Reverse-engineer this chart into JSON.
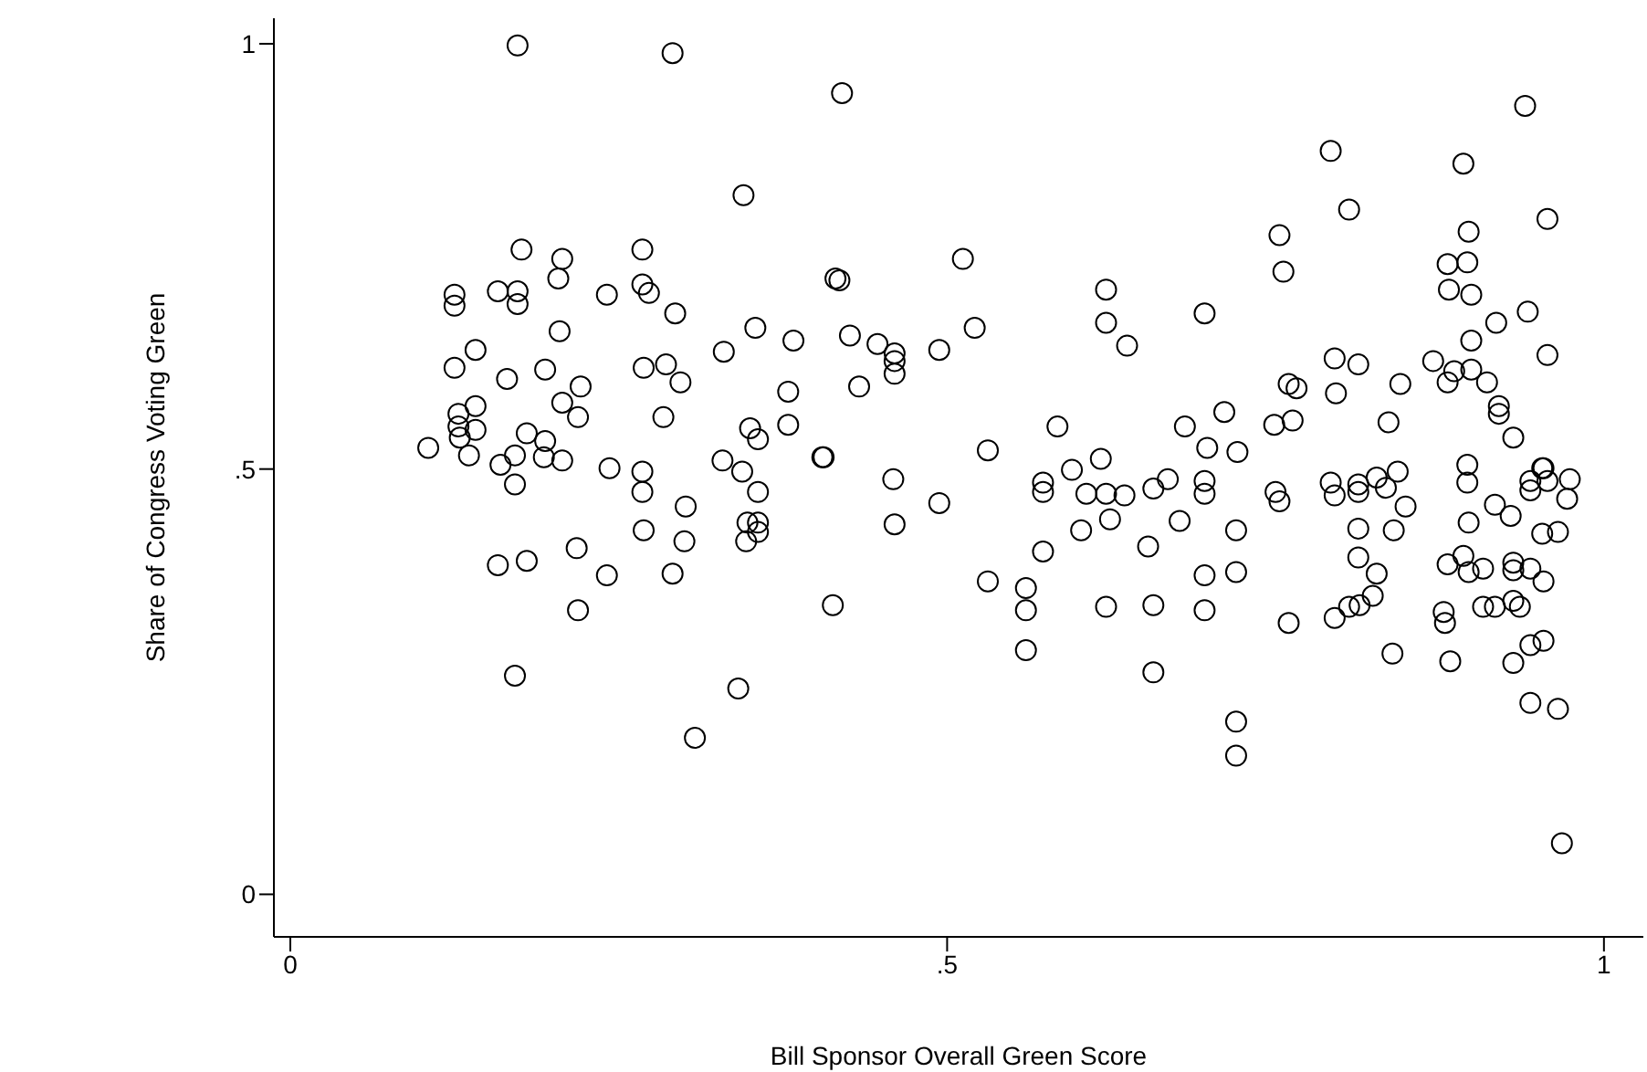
{
  "chart_data": {
    "type": "scatter",
    "xlabel": "Bill Sponsor Overall Green Score",
    "ylabel": "Share of Congress Voting Green",
    "xlim": [
      -0.0125,
      1.03
    ],
    "ylim": [
      -0.05,
      1.03
    ],
    "xticks": [
      0,
      {
        "value": 0.5,
        "label": ".5"
      },
      1
    ],
    "yticks": [
      0,
      {
        "value": 0.5,
        "label": ".5"
      },
      1
    ],
    "grid": false,
    "legend": false,
    "marker": "circle",
    "series": [
      {
        "color": "#000000",
        "x": [
          0.173,
          0.291,
          0.42,
          0.345,
          0.176,
          0.207,
          0.268,
          0.125,
          0.125,
          0.158,
          0.173,
          0.173,
          0.204,
          0.241,
          0.268,
          0.273,
          0.293,
          0.205,
          0.141,
          0.354,
          0.383,
          0.33,
          0.415,
          0.125,
          0.165,
          0.194,
          0.221,
          0.269,
          0.286,
          0.297,
          0.379,
          0.141,
          0.128,
          0.207,
          0.219,
          0.284,
          0.379,
          0.35,
          0.356,
          0.128,
          0.141,
          0.129,
          0.105,
          0.136,
          0.18,
          0.194,
          0.171,
          0.193,
          0.207,
          0.16,
          0.243,
          0.268,
          0.329,
          0.344,
          0.405,
          0.171,
          0.268,
          0.301,
          0.356,
          0.269,
          0.3,
          0.348,
          0.356,
          0.347,
          0.356,
          0.218,
          0.158,
          0.18,
          0.241,
          0.291,
          0.219,
          0.413,
          0.171,
          0.341,
          0.308,
          0.512,
          0.418,
          0.621,
          0.696,
          0.426,
          0.447,
          0.46,
          0.46,
          0.46,
          0.521,
          0.621,
          0.637,
          0.494,
          0.433,
          0.711,
          0.681,
          0.584,
          0.698,
          0.531,
          0.406,
          0.617,
          0.595,
          0.459,
          0.494,
          0.46,
          0.573,
          0.573,
          0.606,
          0.621,
          0.635,
          0.657,
          0.668,
          0.696,
          0.696,
          0.624,
          0.677,
          0.602,
          0.653,
          0.573,
          0.531,
          0.56,
          0.56,
          0.621,
          0.657,
          0.696,
          0.696,
          0.72,
          0.72,
          0.56,
          0.657,
          0.72,
          0.72,
          0.94,
          0.792,
          0.893,
          0.806,
          0.957,
          0.753,
          0.897,
          0.756,
          0.881,
          0.896,
          0.882,
          0.899,
          0.918,
          0.942,
          0.899,
          0.957,
          0.795,
          0.813,
          0.87,
          0.886,
          0.899,
          0.881,
          0.911,
          0.76,
          0.766,
          0.796,
          0.845,
          0.749,
          0.763,
          0.836,
          0.92,
          0.92,
          0.931,
          0.721,
          0.896,
          0.954,
          0.75,
          0.753,
          0.792,
          0.795,
          0.813,
          0.813,
          0.827,
          0.834,
          0.843,
          0.849,
          0.896,
          0.917,
          0.929,
          0.953,
          0.944,
          0.957,
          0.974,
          0.972,
          0.944,
          0.813,
          0.84,
          0.897,
          0.953,
          0.965,
          0.813,
          0.827,
          0.893,
          0.881,
          0.897,
          0.908,
          0.931,
          0.931,
          0.944,
          0.954,
          0.824,
          0.814,
          0.806,
          0.795,
          0.76,
          0.878,
          0.879,
          0.908,
          0.917,
          0.931,
          0.936,
          0.839,
          0.883,
          0.931,
          0.944,
          0.954,
          0.944,
          0.965,
          0.968
        ],
        "values": [
          0.998,
          0.989,
          0.942,
          0.822,
          0.758,
          0.747,
          0.758,
          0.705,
          0.692,
          0.709,
          0.709,
          0.694,
          0.724,
          0.705,
          0.717,
          0.707,
          0.683,
          0.662,
          0.64,
          0.666,
          0.651,
          0.638,
          0.724,
          0.619,
          0.606,
          0.617,
          0.597,
          0.619,
          0.623,
          0.602,
          0.591,
          0.574,
          0.565,
          0.578,
          0.561,
          0.561,
          0.552,
          0.548,
          0.535,
          0.55,
          0.546,
          0.537,
          0.525,
          0.516,
          0.542,
          0.533,
          0.516,
          0.514,
          0.51,
          0.505,
          0.501,
          0.497,
          0.51,
          0.497,
          0.514,
          0.482,
          0.473,
          0.456,
          0.473,
          0.428,
          0.415,
          0.437,
          0.437,
          0.415,
          0.426,
          0.407,
          0.387,
          0.392,
          0.375,
          0.377,
          0.334,
          0.34,
          0.257,
          0.242,
          0.184,
          0.747,
          0.722,
          0.711,
          0.683,
          0.657,
          0.647,
          0.636,
          0.627,
          0.612,
          0.666,
          0.672,
          0.645,
          0.64,
          0.597,
          0.567,
          0.55,
          0.55,
          0.525,
          0.522,
          0.514,
          0.512,
          0.499,
          0.488,
          0.46,
          0.435,
          0.484,
          0.473,
          0.471,
          0.471,
          0.469,
          0.477,
          0.488,
          0.486,
          0.471,
          0.441,
          0.439,
          0.428,
          0.409,
          0.403,
          0.368,
          0.36,
          0.334,
          0.338,
          0.34,
          0.334,
          0.375,
          0.428,
          0.379,
          0.287,
          0.261,
          0.203,
          0.163,
          0.927,
          0.874,
          0.859,
          0.805,
          0.794,
          0.775,
          0.779,
          0.732,
          0.741,
          0.743,
          0.711,
          0.705,
          0.672,
          0.685,
          0.651,
          0.634,
          0.63,
          0.623,
          0.627,
          0.615,
          0.617,
          0.602,
          0.602,
          0.6,
          0.595,
          0.589,
          0.6,
          0.552,
          0.557,
          0.555,
          0.574,
          0.565,
          0.537,
          0.52,
          0.505,
          0.501,
          0.473,
          0.462,
          0.484,
          0.469,
          0.482,
          0.473,
          0.49,
          0.478,
          0.497,
          0.456,
          0.484,
          0.458,
          0.445,
          0.501,
          0.486,
          0.486,
          0.488,
          0.465,
          0.475,
          0.43,
          0.428,
          0.437,
          0.424,
          0.426,
          0.396,
          0.377,
          0.398,
          0.388,
          0.379,
          0.383,
          0.39,
          0.381,
          0.383,
          0.368,
          0.351,
          0.34,
          0.338,
          0.325,
          0.319,
          0.332,
          0.319,
          0.338,
          0.338,
          0.345,
          0.338,
          0.283,
          0.274,
          0.272,
          0.293,
          0.298,
          0.225,
          0.218,
          0.06
        ]
      }
    ]
  }
}
